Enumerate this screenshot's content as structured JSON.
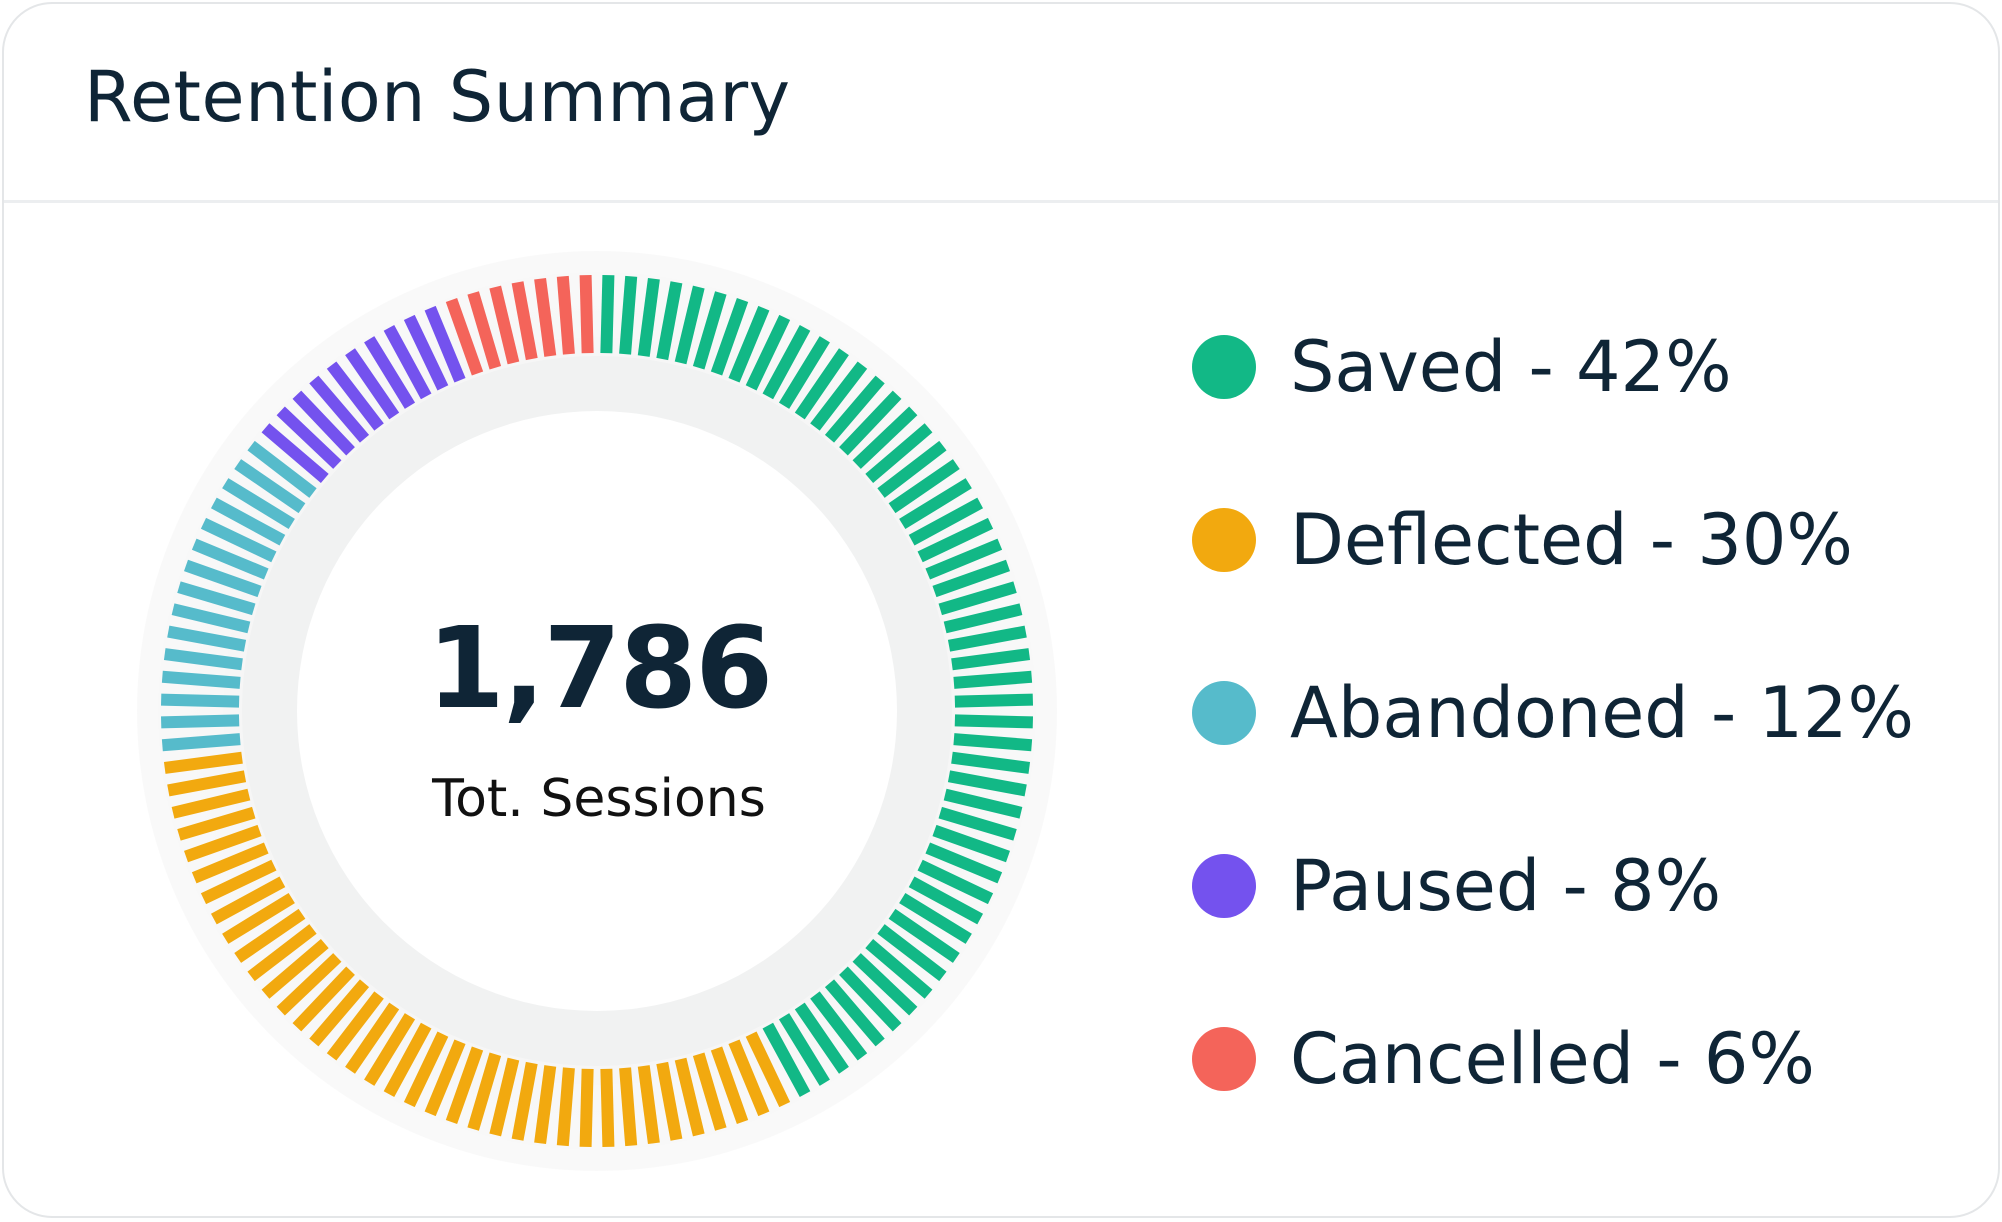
{
  "title": "Retention Summary",
  "total": {
    "value": "1,786",
    "label": "Tot. Sessions"
  },
  "legend": [
    {
      "label": "Saved - 42%",
      "color": "#12b886"
    },
    {
      "label": "Deflected - 30%",
      "color": "#f2a90f"
    },
    {
      "label": "Abandoned - 12%",
      "color": "#56bbcb"
    },
    {
      "label": "Paused - 8%",
      "color": "#7452ee"
    },
    {
      "label": "Cancelled - 6%",
      "color": "#f4645a"
    }
  ],
  "chart_data": {
    "type": "pie",
    "variant": "segmented-donut",
    "title": "Retention Summary",
    "center_value": 1786,
    "categories": [
      "Saved",
      "Deflected",
      "Abandoned",
      "Paused",
      "Cancelled"
    ],
    "values": [
      42,
      30,
      12,
      8,
      6
    ],
    "unit": "%",
    "colors": [
      "#12b886",
      "#f2a90f",
      "#56bbcb",
      "#7452ee",
      "#f4645a"
    ],
    "legend_position": "right"
  }
}
